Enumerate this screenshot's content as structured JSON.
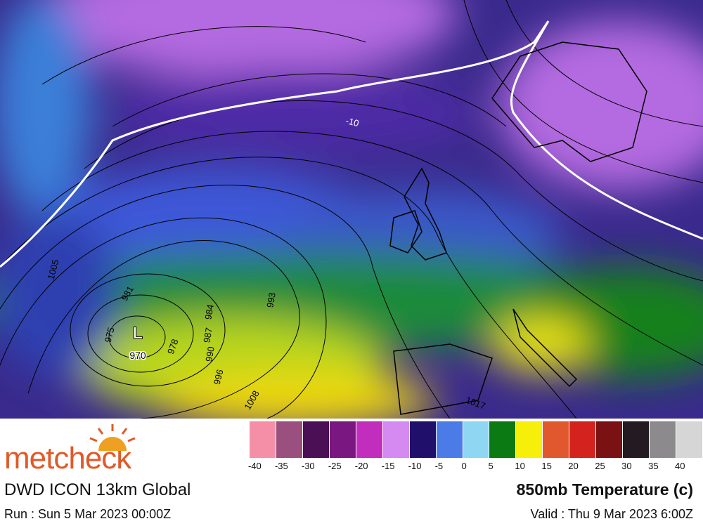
{
  "map": {
    "low_marker": "L",
    "low_pressure": "970",
    "isotherm_label": "-10",
    "isobar_labels": [
      "1005",
      "981",
      "975",
      "978",
      "984",
      "987",
      "990",
      "993",
      "996",
      "1008",
      "1017"
    ]
  },
  "legend": {
    "colors": [
      "#f58fa8",
      "#9a4f7e",
      "#4b0f55",
      "#7a1780",
      "#c12ebd",
      "#d48af0",
      "#21106b",
      "#4b7be6",
      "#8fd6f2",
      "#0b7a12",
      "#f5ef0a",
      "#e2582e",
      "#d4221e",
      "#7a1214",
      "#231a22",
      "#8c8a8c",
      "#d6d6d6"
    ],
    "labels": [
      -40,
      -35,
      -30,
      -25,
      -20,
      -15,
      -10,
      -5,
      0,
      5,
      10,
      15,
      20,
      25,
      30,
      35,
      40
    ]
  },
  "footer": {
    "brand": "metcheck",
    "model": "DWD ICON 13km Global",
    "product": "850mb Temperature (c)",
    "run": "Run : Sun 5 Mar 2023 00:00Z",
    "valid": "Valid : Thu 9 Mar 2023 6:00Z"
  }
}
